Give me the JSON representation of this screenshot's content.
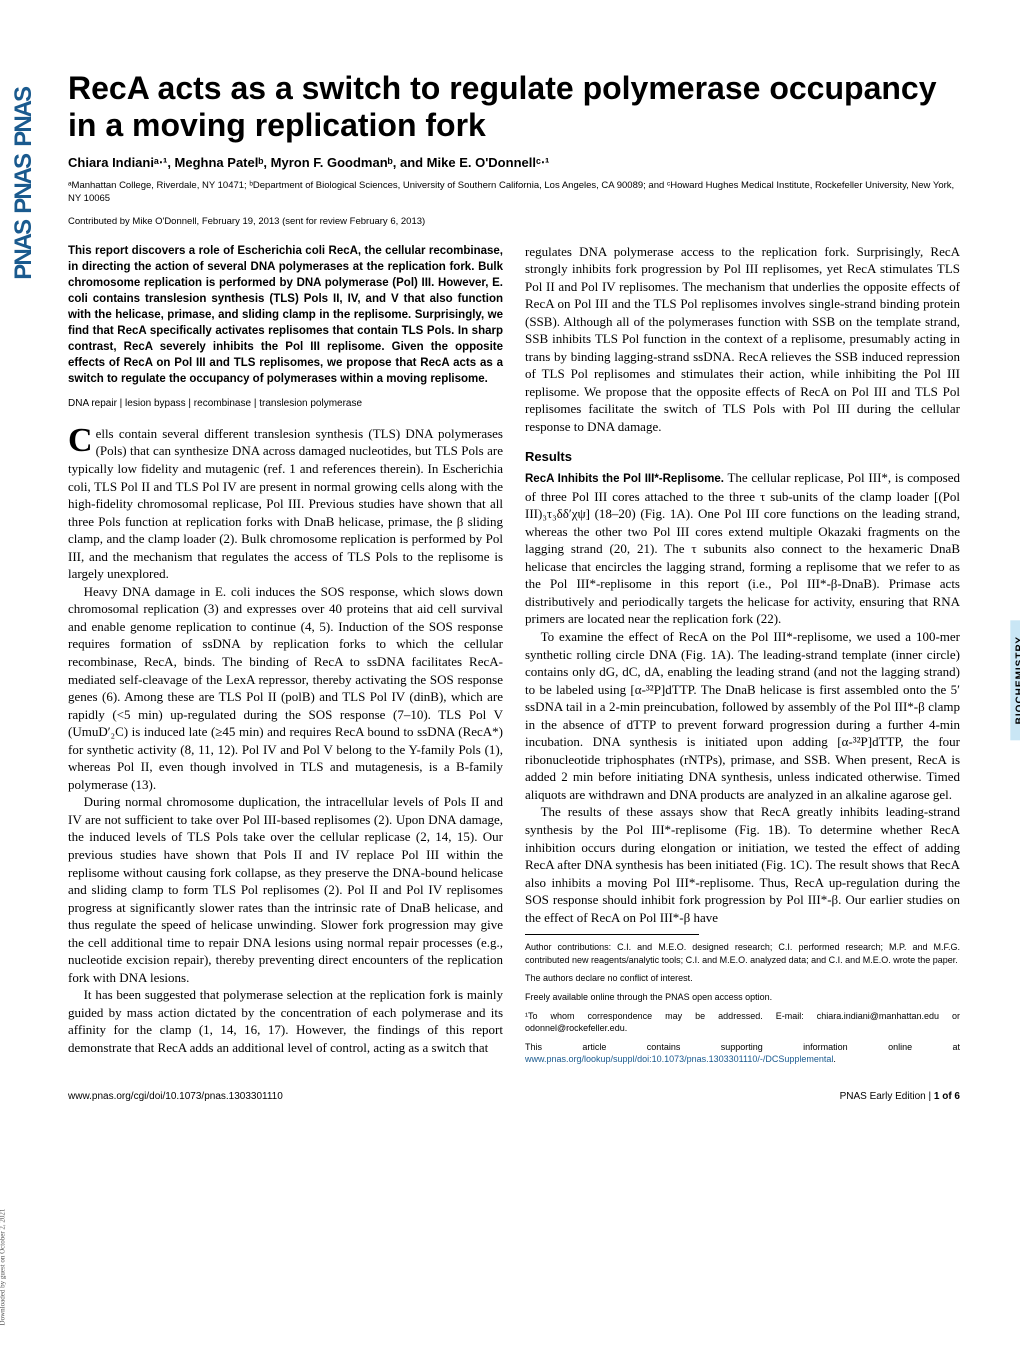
{
  "logo": {
    "text": "PNAS"
  },
  "download_note": "Downloaded by guest on October 2, 2021",
  "side_label": "BIOCHEMISTRY",
  "title": "RecA acts as a switch to regulate polymerase occupancy in a moving replication fork",
  "authors": "Chiara Indianiᵃ⋅¹, Meghna Patelᵇ, Myron F. Goodmanᵇ, and Mike E. O'Donnellᶜ⋅¹",
  "affiliations": "ᵃManhattan College, Riverdale, NY 10471; ᵇDepartment of Biological Sciences, University of Southern California, Los Angeles, CA 90089; and ᶜHoward Hughes Medical Institute, Rockefeller University, New York, NY 10065",
  "contributed": "Contributed by Mike O'Donnell, February 19, 2013 (sent for review February 6, 2013)",
  "abstract": "This report discovers a role of Escherichia coli RecA, the cellular recombinase, in directing the action of several DNA polymerases at the replication fork. Bulk chromosome replication is performed by DNA polymerase (Pol) III. However, E. coli contains translesion synthesis (TLS) Pols II, IV, and V that also function with the helicase, primase, and sliding clamp in the replisome. Surprisingly, we find that RecA specifically activates replisomes that contain TLS Pols. In sharp contrast, RecA severely inhibits the Pol III replisome. Given the opposite effects of RecA on Pol III and TLS replisomes, we propose that RecA acts as a switch to regulate the occupancy of polymerases within a moving replisome.",
  "keywords": "DNA repair | lesion bypass | recombinase | translesion polymerase",
  "col1_intro": "regulates DNA polymerase access to the replication fork. Surprisingly, RecA strongly inhibits fork progression by Pol III replisomes, yet RecA stimulates TLS Pol II and Pol IV replisomes. The mechanism that underlies the opposite effects of RecA on Pol III and the TLS Pol replisomes involves single-strand binding protein (SSB). Although all of the polymerases function with SSB on the template strand, SSB inhibits TLS Pol function in the context of a replisome, presumably acting in trans by binding lagging-strand ssDNA. RecA relieves the SSB induced repression of TLS Pol replisomes and stimulates their action, while inhibiting the Pol III replisome. We propose that the opposite effects of RecA on Pol III and TLS Pol replisomes facilitate the switch of TLS Pols with Pol III during the cellular response to DNA damage.",
  "body": {
    "p1": "Cells contain several different translesion synthesis (TLS) DNA polymerases (Pols) that can synthesize DNA across damaged nucleotides, but TLS Pols are typically low fidelity and mutagenic (ref. 1 and references therein). In Escherichia coli, TLS Pol II and TLS Pol IV are present in normal growing cells along with the high-fidelity chromosomal replicase, Pol III. Previous studies have shown that all three Pols function at replication forks with DnaB helicase, primase, the β sliding clamp, and the clamp loader (2). Bulk chromosome replication is performed by Pol III, and the mechanism that regulates the access of TLS Pols to the replisome is largely unexplored.",
    "p2": "Heavy DNA damage in E. coli induces the SOS response, which slows down chromosomal replication (3) and expresses over 40 proteins that aid cell survival and enable genome replication to continue (4, 5). Induction of the SOS response requires formation of ssDNA by replication forks to which the cellular recombinase, RecA, binds. The binding of RecA to ssDNA facilitates RecA-mediated self-cleavage of the LexA repressor, thereby activating the SOS response genes (6). Among these are TLS Pol II (polB) and TLS Pol IV (dinB), which are rapidly (<5 min) up-regulated during the SOS response (7–10). TLS Pol V (UmuD′₂C) is induced late (≥45 min) and requires RecA bound to ssDNA (RecA*) for synthetic activity (8, 11, 12). Pol IV and Pol V belong to the Y-family Pols (1), whereas Pol II, even though involved in TLS and mutagenesis, is a B-family polymerase (13).",
    "p3": "During normal chromosome duplication, the intracellular levels of Pols II and IV are not sufficient to take over Pol III-based replisomes (2). Upon DNA damage, the induced levels of TLS Pols take over the cellular replicase (2, 14, 15). Our previous studies have shown that Pols II and IV replace Pol III within the replisome without causing fork collapse, as they preserve the DNA-bound helicase and sliding clamp to form TLS Pol replisomes (2). Pol II and Pol IV replisomes progress at significantly slower rates than the intrinsic rate of DnaB helicase, and thus regulate the speed of helicase unwinding. Slower fork progression may give the cell additional time to repair DNA lesions using normal repair processes (e.g., nucleotide excision repair), thereby preventing direct encounters of the replication fork with DNA lesions.",
    "p4": "It has been suggested that polymerase selection at the replication fork is mainly guided by mass action dictated by the concentration of each polymerase and its affinity for the clamp (1, 14, 16, 17). However, the findings of this report demonstrate that RecA adds an additional level of control, acting as a switch that"
  },
  "results_heading": "Results",
  "results": {
    "runin": "RecA Inhibits the Pol III*-Replisome.",
    "r1": " The cellular replicase, Pol III*, is composed of three Pol III cores attached to the three τ sub-units of the clamp loader [(Pol III)₃τ₃δδ′χψ] (18–20) (Fig. 1A). One Pol III core functions on the leading strand, whereas the other two Pol III cores extend multiple Okazaki fragments on the lagging strand (20, 21). The τ subunits also connect to the hexameric DnaB helicase that encircles the lagging strand, forming a replisome that we refer to as the Pol III*-replisome in this report (i.e., Pol III*-β-DnaB). Primase acts distributively and periodically targets the helicase for activity, ensuring that RNA primers are located near the replication fork (22).",
    "r2": "To examine the effect of RecA on the Pol III*-replisome, we used a 100-mer synthetic rolling circle DNA (Fig. 1A). The leading-strand template (inner circle) contains only dG, dC, dA, enabling the leading strand (and not the lagging strand) to be labeled using [α-³²P]dTTP. The DnaB helicase is first assembled onto the 5′ ssDNA tail in a 2-min preincubation, followed by assembly of the Pol III*-β clamp in the absence of dTTP to prevent forward progression during a further 4-min incubation. DNA synthesis is initiated upon adding [α-³²P]dTTP, the four ribonucleotide triphosphates (rNTPs), primase, and SSB. When present, RecA is added 2 min before initiating DNA synthesis, unless indicated otherwise. Timed aliquots are withdrawn and DNA products are analyzed in an alkaline agarose gel.",
    "r3": "The results of these assays show that RecA greatly inhibits leading-strand synthesis by the Pol III*-replisome (Fig. 1B). To determine whether RecA inhibition occurs during elongation or initiation, we tested the effect of adding RecA after DNA synthesis has been initiated (Fig. 1C). The result shows that RecA also inhibits a moving Pol III*-replisome. Thus, RecA up-regulation during the SOS response should inhibit fork progression by Pol III*-β. Our earlier studies on the effect of RecA on Pol III*-β have"
  },
  "footnotes": {
    "contrib": "Author contributions: C.I. and M.E.O. designed research; C.I. performed research; M.P. and M.F.G. contributed new reagents/analytic tools; C.I. and M.E.O. analyzed data; and C.I. and M.E.O. wrote the paper.",
    "conflict": "The authors declare no conflict of interest.",
    "openaccess": "Freely available online through the PNAS open access option.",
    "correspond": "¹To whom correspondence may be addressed. E-mail: chiara.indiani@manhattan.edu or odonnel@rockefeller.edu.",
    "suppl_pre": "This article contains supporting information online at ",
    "suppl_link": "www.pnas.org/lookup/suppl/doi:10.1073/pnas.1303301110/-/DCSupplemental",
    "suppl_post": "."
  },
  "footer": {
    "left": "www.pnas.org/cgi/doi/10.1073/pnas.1303301110",
    "right_pre": "PNAS Early Edition | ",
    "right_bold": "1 of 6"
  },
  "colors": {
    "link": "#1a5a8e",
    "side_bg": "#c9e6f5"
  }
}
